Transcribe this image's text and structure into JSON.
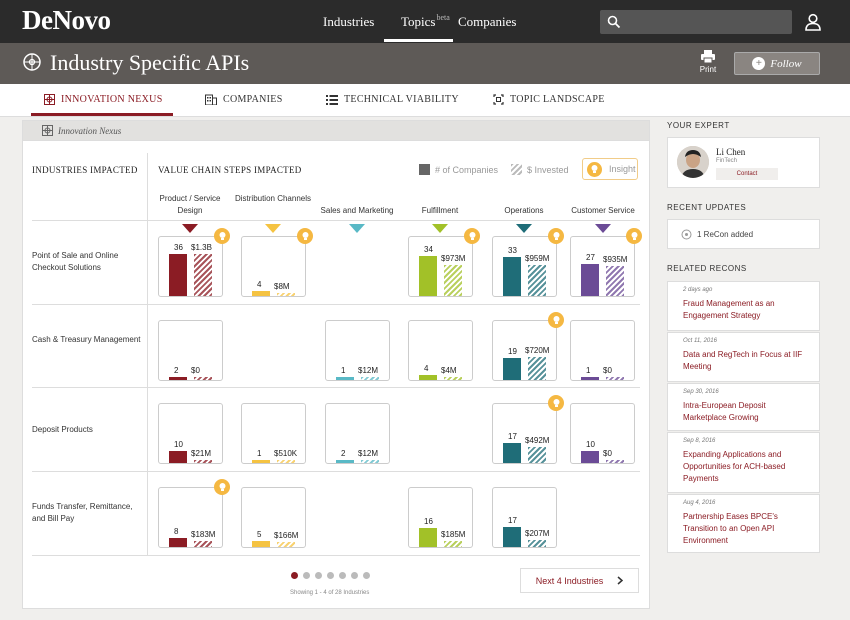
{
  "header": {
    "logo": "DeNovo",
    "nav": [
      {
        "label": "Industries"
      },
      {
        "label": "Topics",
        "badge": "beta"
      },
      {
        "label": "Companies"
      }
    ],
    "search_placeholder": ""
  },
  "title_bar": {
    "title": "Industry Specific APIs",
    "print_label": "Print",
    "follow_label": "Follow"
  },
  "tabs": [
    {
      "label": "INNOVATION NEXUS",
      "icon": "nexus-icon",
      "active": true
    },
    {
      "label": "COMPANIES",
      "icon": "building-icon"
    },
    {
      "label": "TECHNICAL VIABILITY",
      "icon": "list-icon"
    },
    {
      "label": "TOPIC LANDSCAPE",
      "icon": "landscape-icon"
    }
  ],
  "panel": {
    "header_label": "Innovation Nexus",
    "industries_heading": "INDUSTRIES IMPACTED",
    "value_chain_heading": "VALUE CHAIN STEPS IMPACTED",
    "legend": {
      "companies": "# of Companies",
      "invested": "$ Invested",
      "insight": "Insight"
    },
    "columns": [
      {
        "label": "Product / Service Design",
        "color": "#8b1c24"
      },
      {
        "label": "Distribution Channels",
        "color": "#f5c342"
      },
      {
        "label": "Sales and Marketing",
        "color": "#59b9c6"
      },
      {
        "label": "Fulfillment",
        "color": "#a2c128"
      },
      {
        "label": "Operations",
        "color": "#1f6d78"
      },
      {
        "label": "Customer Service",
        "color": "#6b4b96"
      }
    ],
    "rows": [
      {
        "label": "Point of Sale and Online Checkout Solutions",
        "cells": [
          {
            "companies": "36",
            "invested": "$1.3B",
            "c": 36,
            "i": 1300,
            "insight": true
          },
          {
            "companies": "4",
            "invested": "$8M",
            "c": 4,
            "i": 8,
            "insight": true
          },
          null,
          {
            "companies": "34",
            "invested": "$973M",
            "c": 34,
            "i": 973,
            "insight": true
          },
          {
            "companies": "33",
            "invested": "$959M",
            "c": 33,
            "i": 959,
            "insight": true
          },
          {
            "companies": "27",
            "invested": "$935M",
            "c": 27,
            "i": 935,
            "insight": true
          }
        ]
      },
      {
        "label": "Cash & Treasury Management",
        "cells": [
          {
            "companies": "2",
            "invested": "$0",
            "c": 2,
            "i": 0,
            "insight": false
          },
          null,
          {
            "companies": "1",
            "invested": "$12M",
            "c": 1,
            "i": 12,
            "insight": false
          },
          {
            "companies": "4",
            "invested": "$4M",
            "c": 4,
            "i": 4,
            "insight": false
          },
          {
            "companies": "19",
            "invested": "$720M",
            "c": 19,
            "i": 720,
            "insight": true
          },
          {
            "companies": "1",
            "invested": "$0",
            "c": 1,
            "i": 0,
            "insight": false
          }
        ]
      },
      {
        "label": "Deposit Products",
        "cells": [
          {
            "companies": "10",
            "invested": "$21M",
            "c": 10,
            "i": 21,
            "insight": false
          },
          {
            "companies": "1",
            "invested": "$510K",
            "c": 1,
            "i": 0.5,
            "insight": false
          },
          {
            "companies": "2",
            "invested": "$12M",
            "c": 2,
            "i": 12,
            "insight": false
          },
          null,
          {
            "companies": "17",
            "invested": "$492M",
            "c": 17,
            "i": 492,
            "insight": true
          },
          {
            "companies": "10",
            "invested": "$0",
            "c": 10,
            "i": 0,
            "insight": false
          }
        ]
      },
      {
        "label": "Funds Transfer, Remittance, and Bill Pay",
        "cells": [
          {
            "companies": "8",
            "invested": "$183M",
            "c": 8,
            "i": 183,
            "insight": true
          },
          {
            "companies": "5",
            "invested": "$166M",
            "c": 5,
            "i": 166,
            "insight": false
          },
          null,
          {
            "companies": "16",
            "invested": "$185M",
            "c": 16,
            "i": 185,
            "insight": false
          },
          {
            "companies": "17",
            "invested": "$207M",
            "c": 17,
            "i": 207,
            "insight": false
          },
          null
        ]
      }
    ],
    "pagination": {
      "pages": 7,
      "current": 1,
      "showing": "Showing 1 - 4 of 28 Industries",
      "next_label": "Next 4 Industries"
    }
  },
  "sidebar": {
    "expert_heading": "YOUR EXPERT",
    "expert": {
      "name": "Li Chen",
      "role": "FinTech",
      "contact_label": "Contact"
    },
    "updates_heading": "RECENT UPDATES",
    "update_text": "1 ReCon added",
    "recons_heading": "RELATED RECONS",
    "recons": [
      {
        "date": "2 days ago",
        "title": "Fraud Management as an Engagement Strategy"
      },
      {
        "date": "Oct 11, 2016",
        "title": "Data and RegTech in Focus at IIF Meeting"
      },
      {
        "date": "Sep 30, 2016",
        "title": "Intra-European Deposit Marketplace Growing"
      },
      {
        "date": "Sep 8, 2016",
        "title": "Expanding Applications and Opportunities for ACH-based Payments"
      },
      {
        "date": "Aug 4, 2016",
        "title": "Partnership Eases BPCE's Transition to an Open API Environment"
      }
    ]
  }
}
